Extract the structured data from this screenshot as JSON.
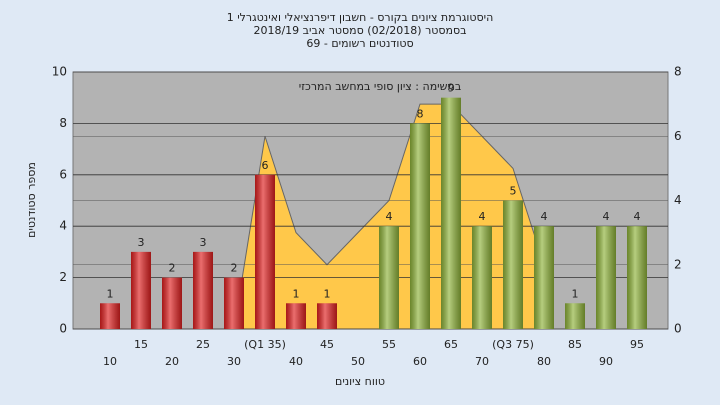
{
  "chart_data": {
    "type": "bar",
    "title": [
      "היסטוגרמת ציונים בקורס - חשבון דיפרנציאלי ואינטגרלי 1",
      "בסמסטר  (02/2018)  סמסטר אביב 2018/19",
      "סטודנטים רשומים - 69"
    ],
    "annotation": "במשימה : ציון סופי במחשב המרכזי",
    "x_label": "טווח ציונים",
    "y_label": "מספר סטודנטים",
    "categories": [
      "10",
      "15",
      "20",
      "25",
      "30",
      "(Q1 35)",
      "40",
      "45",
      "50",
      "55",
      "60",
      "65",
      "70",
      "(Q3 75)",
      "80",
      "85",
      "90",
      "95"
    ],
    "series": [
      {
        "values": [
          1,
          3,
          2,
          3,
          2,
          6,
          1,
          1,
          0,
          4,
          8,
          9,
          4,
          5,
          4,
          1,
          4,
          4
        ],
        "colors": [
          "#e02020",
          "#e02020",
          "#e02020",
          "#e02020",
          "#e02020",
          "#e02020",
          "#e02020",
          "#e02020",
          "#e02020",
          "#8fb33a",
          "#8fb33a",
          "#8fb33a",
          "#8fb33a",
          "#8fb33a",
          "#8fb33a",
          "#8fb33a",
          "#8fb33a",
          "#8fb33a"
        ]
      },
      {
        "type": "area",
        "axis": "y2",
        "color": "#ffc84a",
        "values": [
          null,
          null,
          null,
          null,
          0,
          6,
          3,
          2,
          3,
          4,
          7,
          7,
          6,
          5,
          2,
          null,
          null,
          null
        ]
      }
    ],
    "ylim": [
      0,
      10
    ],
    "yticks": [
      0,
      2,
      4,
      6,
      8,
      10
    ],
    "y2lim": [
      0,
      8
    ],
    "y2ticks": [
      0,
      2,
      4,
      6,
      8
    ],
    "grid": true
  }
}
